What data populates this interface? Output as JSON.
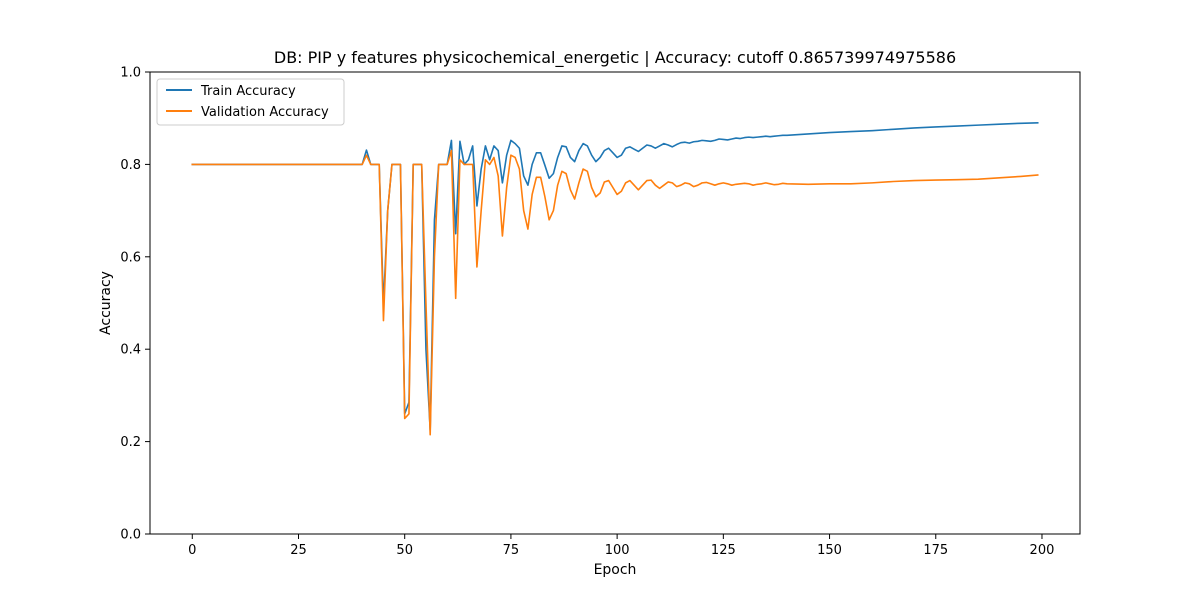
{
  "chart_data": {
    "type": "line",
    "title": "DB: PIP y features physicochemical_energetic | Accuracy: cutoff 0.865739974975586",
    "xlabel": "Epoch",
    "ylabel": "Accuracy",
    "xlim": [
      -9.95,
      208.95
    ],
    "ylim": [
      0.0,
      1.0
    ],
    "xticks": [
      0,
      25,
      50,
      75,
      100,
      125,
      150,
      175,
      200
    ],
    "yticks": [
      0.0,
      0.2,
      0.4,
      0.6,
      0.8,
      1.0
    ],
    "xtick_labels": [
      "0",
      "25",
      "50",
      "75",
      "100",
      "125",
      "150",
      "175",
      "200"
    ],
    "ytick_labels": [
      "0.0",
      "0.2",
      "0.4",
      "0.6",
      "0.8",
      "1.0"
    ],
    "grid": false,
    "legend_position": "top-left",
    "series": [
      {
        "name": "Train Accuracy",
        "color": "#1f77b4",
        "x": [
          0,
          39,
          40,
          41,
          42,
          43,
          44,
          45,
          46,
          47,
          48,
          49,
          50,
          51,
          52,
          53,
          54,
          55,
          56,
          57,
          58,
          59,
          60,
          61,
          62,
          63,
          64,
          65,
          66,
          67,
          68,
          69,
          70,
          71,
          72,
          73,
          74,
          75,
          76,
          77,
          78,
          79,
          80,
          81,
          82,
          83,
          84,
          85,
          86,
          87,
          88,
          89,
          90,
          91,
          92,
          93,
          94,
          95,
          96,
          97,
          98,
          99,
          100,
          101,
          102,
          103,
          104,
          105,
          106,
          107,
          108,
          109,
          110,
          111,
          112,
          113,
          114,
          115,
          116,
          117,
          118,
          119,
          120,
          121,
          122,
          123,
          124,
          125,
          126,
          127,
          128,
          129,
          130,
          131,
          132,
          133,
          134,
          135,
          136,
          137,
          138,
          139,
          140,
          145,
          150,
          155,
          160,
          165,
          170,
          175,
          180,
          185,
          190,
          195,
          199
        ],
        "y": [
          0.8,
          0.8,
          0.8,
          0.831,
          0.8,
          0.8,
          0.8,
          0.495,
          0.7,
          0.8,
          0.8,
          0.8,
          0.26,
          0.285,
          0.8,
          0.8,
          0.8,
          0.4,
          0.225,
          0.68,
          0.8,
          0.8,
          0.8,
          0.852,
          0.65,
          0.85,
          0.8,
          0.81,
          0.84,
          0.71,
          0.79,
          0.84,
          0.81,
          0.84,
          0.83,
          0.76,
          0.82,
          0.852,
          0.845,
          0.835,
          0.775,
          0.755,
          0.8,
          0.825,
          0.825,
          0.798,
          0.77,
          0.78,
          0.815,
          0.84,
          0.838,
          0.815,
          0.806,
          0.83,
          0.845,
          0.84,
          0.82,
          0.806,
          0.815,
          0.83,
          0.835,
          0.825,
          0.815,
          0.82,
          0.835,
          0.838,
          0.833,
          0.828,
          0.835,
          0.842,
          0.84,
          0.835,
          0.84,
          0.845,
          0.842,
          0.838,
          0.843,
          0.847,
          0.848,
          0.846,
          0.849,
          0.85,
          0.852,
          0.851,
          0.85,
          0.852,
          0.855,
          0.854,
          0.853,
          0.855,
          0.857,
          0.856,
          0.858,
          0.859,
          0.858,
          0.859,
          0.86,
          0.861,
          0.86,
          0.861,
          0.862,
          0.863,
          0.863,
          0.866,
          0.869,
          0.871,
          0.873,
          0.876,
          0.879,
          0.881,
          0.883,
          0.885,
          0.887,
          0.889,
          0.89
        ]
      },
      {
        "name": "Validation Accuracy",
        "color": "#ff7f0e",
        "x": [
          0,
          39,
          40,
          41,
          42,
          43,
          44,
          45,
          46,
          47,
          48,
          49,
          50,
          51,
          52,
          53,
          54,
          55,
          56,
          57,
          58,
          59,
          60,
          61,
          62,
          63,
          64,
          65,
          66,
          67,
          68,
          69,
          70,
          71,
          72,
          73,
          74,
          75,
          76,
          77,
          78,
          79,
          80,
          81,
          82,
          83,
          84,
          85,
          86,
          87,
          88,
          89,
          90,
          91,
          92,
          93,
          94,
          95,
          96,
          97,
          98,
          99,
          100,
          101,
          102,
          103,
          104,
          105,
          106,
          107,
          108,
          109,
          110,
          111,
          112,
          113,
          114,
          115,
          116,
          117,
          118,
          119,
          120,
          121,
          122,
          123,
          124,
          125,
          126,
          127,
          128,
          129,
          130,
          131,
          132,
          133,
          134,
          135,
          136,
          137,
          138,
          139,
          140,
          145,
          150,
          155,
          160,
          165,
          170,
          175,
          180,
          185,
          190,
          195,
          199
        ],
        "y": [
          0.8,
          0.8,
          0.8,
          0.82,
          0.8,
          0.8,
          0.8,
          0.462,
          0.7,
          0.8,
          0.8,
          0.8,
          0.25,
          0.26,
          0.8,
          0.8,
          0.8,
          0.5,
          0.215,
          0.6,
          0.8,
          0.8,
          0.8,
          0.83,
          0.51,
          0.81,
          0.8,
          0.8,
          0.8,
          0.578,
          0.7,
          0.81,
          0.8,
          0.815,
          0.775,
          0.645,
          0.75,
          0.82,
          0.815,
          0.79,
          0.7,
          0.66,
          0.735,
          0.772,
          0.772,
          0.73,
          0.68,
          0.7,
          0.755,
          0.785,
          0.78,
          0.745,
          0.725,
          0.76,
          0.79,
          0.785,
          0.75,
          0.73,
          0.738,
          0.762,
          0.765,
          0.75,
          0.735,
          0.742,
          0.76,
          0.765,
          0.755,
          0.745,
          0.755,
          0.765,
          0.766,
          0.755,
          0.748,
          0.755,
          0.762,
          0.76,
          0.752,
          0.755,
          0.76,
          0.758,
          0.752,
          0.755,
          0.76,
          0.761,
          0.758,
          0.755,
          0.758,
          0.76,
          0.758,
          0.755,
          0.757,
          0.758,
          0.759,
          0.758,
          0.755,
          0.757,
          0.758,
          0.76,
          0.758,
          0.756,
          0.757,
          0.759,
          0.758,
          0.757,
          0.758,
          0.758,
          0.76,
          0.763,
          0.765,
          0.766,
          0.767,
          0.768,
          0.771,
          0.774,
          0.777
        ]
      }
    ]
  }
}
